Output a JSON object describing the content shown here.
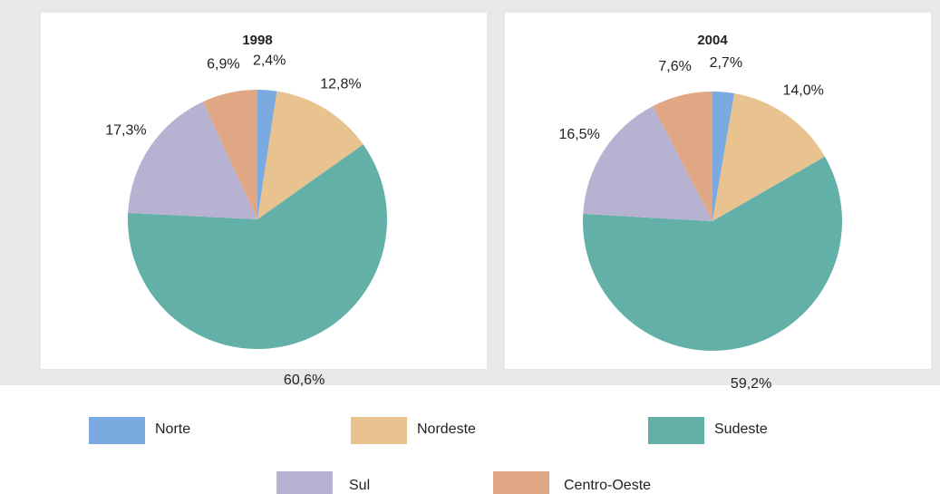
{
  "chart_data": [
    {
      "type": "pie",
      "title": "1998",
      "values": [
        2.4,
        12.8,
        60.6,
        17.3,
        6.9
      ],
      "value_labels": [
        "2,4%",
        "12,8%",
        "60,6%",
        "17,3%",
        "6,9%"
      ]
    },
    {
      "type": "pie",
      "title": "2004",
      "values": [
        2.7,
        14.0,
        59.2,
        16.5,
        7.6
      ],
      "value_labels": [
        "2,7%",
        "14,0%",
        "59,2%",
        "16,5%",
        "7,6%"
      ]
    }
  ],
  "legend": {
    "categories": [
      "Norte",
      "Nordeste",
      "Sudeste",
      "Sul",
      "Centro-Oeste"
    ],
    "colors": [
      "#7aaadf",
      "#e8c38f",
      "#62b0a8",
      "#b8b2d2",
      "#e0a784"
    ]
  }
}
